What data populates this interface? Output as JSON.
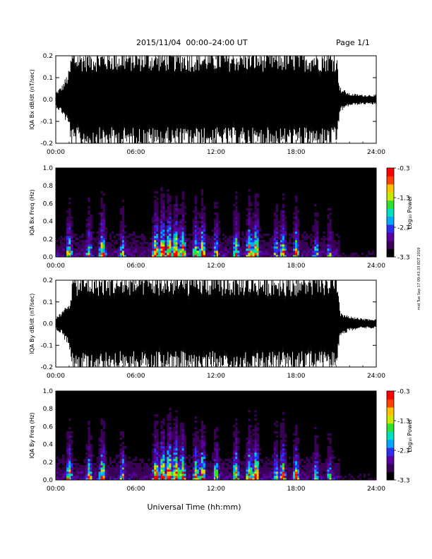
{
  "header": {
    "date_range": "2015/11/04  00:00–24:00 UT",
    "page": "Page 1/1"
  },
  "side_stamp": "mid Tue Sep 17 09:43:33 EDT 2019",
  "chart_data": [
    {
      "type": "line",
      "ylabel": "IQA Bx dB/dt (nT/sec)",
      "xticks": [
        "00:00",
        "06:00",
        "12:00",
        "18:00",
        "24:00"
      ],
      "xlim": [
        0,
        24
      ],
      "ylim": [
        -0.2,
        0.2
      ],
      "yticks": [
        "-0.2",
        "-0.1",
        "0.0",
        "0.1",
        "0.2"
      ],
      "series_color": "#000000",
      "envelope_hours": [
        0,
        0.5,
        1,
        1.2,
        2,
        3,
        4,
        5,
        6,
        7,
        7.5,
        8,
        9,
        9.5,
        10,
        11,
        12,
        13,
        14,
        15,
        16,
        17,
        18,
        19,
        20,
        21,
        21.3,
        22,
        23,
        24
      ],
      "envelope_amplitude": [
        0.03,
        0.06,
        0.12,
        0.2,
        0.2,
        0.2,
        0.2,
        0.2,
        0.2,
        0.2,
        0.2,
        0.2,
        0.2,
        0.2,
        0.2,
        0.2,
        0.2,
        0.2,
        0.2,
        0.2,
        0.2,
        0.2,
        0.2,
        0.2,
        0.2,
        0.2,
        0.05,
        0.025,
        0.02,
        0.02
      ]
    },
    {
      "type": "heatmap",
      "ylabel": "IQA Bx Freq (Hz)",
      "xticks": [
        "00:00",
        "06:00",
        "12:00",
        "18:00",
        "24:00"
      ],
      "xlim": [
        0,
        24
      ],
      "ylim": [
        0,
        1
      ],
      "yticks": [
        "0.0",
        "0.2",
        "0.4",
        "0.6",
        "0.8",
        "1.0"
      ],
      "colorbar_label": "Log₁₀ Power",
      "colorbar_ticks": [
        "-0.3",
        "-1.3",
        "-2.3",
        "-3.3"
      ],
      "colorbar_range": [
        -3.3,
        -0.3
      ],
      "colormap": [
        "#000000",
        "#3a0058",
        "#5a00a0",
        "#2e2ef0",
        "#00a8ff",
        "#00e0c0",
        "#30e030",
        "#c8e800",
        "#ffc000",
        "#ff4000",
        "#ff0000"
      ],
      "activity_hours": [
        1,
        2.5,
        3.5,
        5,
        7.5,
        8,
        8.5,
        9,
        9.5,
        10.5,
        11,
        12,
        13.5,
        14.5,
        15,
        16.5,
        17,
        18,
        19.5,
        20.5
      ],
      "activity_strength": [
        0.6,
        0.5,
        0.7,
        0.45,
        0.8,
        0.9,
        0.9,
        0.85,
        0.7,
        0.6,
        0.75,
        0.55,
        0.65,
        0.7,
        0.8,
        0.5,
        0.65,
        0.55,
        0.45,
        0.4
      ]
    },
    {
      "type": "line",
      "ylabel": "IQA By dB/dt (nT/sec)",
      "xticks": [
        "00:00",
        "06:00",
        "12:00",
        "18:00",
        "24:00"
      ],
      "xlim": [
        0,
        24
      ],
      "ylim": [
        -0.2,
        0.2
      ],
      "yticks": [
        "-0.2",
        "-0.1",
        "0.0",
        "0.1",
        "0.2"
      ],
      "series_color": "#000000",
      "envelope_hours": [
        0,
        0.5,
        1,
        1.3,
        2,
        3,
        4,
        5,
        6,
        7,
        7.5,
        8,
        9,
        9.5,
        10,
        11,
        12,
        13,
        14,
        15,
        16,
        17,
        18,
        19,
        20,
        21,
        21.3,
        22,
        23,
        24
      ],
      "envelope_amplitude": [
        0.025,
        0.05,
        0.1,
        0.2,
        0.2,
        0.2,
        0.2,
        0.2,
        0.2,
        0.2,
        0.2,
        0.2,
        0.2,
        0.2,
        0.2,
        0.2,
        0.2,
        0.2,
        0.2,
        0.2,
        0.2,
        0.2,
        0.2,
        0.2,
        0.2,
        0.2,
        0.05,
        0.03,
        0.02,
        0.02
      ]
    },
    {
      "type": "heatmap",
      "ylabel": "IQA By Freq (Hz)",
      "xticks": [
        "00:00",
        "06:00",
        "12:00",
        "18:00",
        "24:00"
      ],
      "xlim": [
        0,
        24
      ],
      "ylim": [
        0,
        1
      ],
      "yticks": [
        "0.0",
        "0.2",
        "0.4",
        "0.6",
        "0.8",
        "1.0"
      ],
      "colorbar_label": "Log₁₀ Power",
      "colorbar_ticks": [
        "-0.3",
        "-1.3",
        "-2.3",
        "-3.3"
      ],
      "colorbar_range": [
        -3.3,
        -0.3
      ],
      "colormap": [
        "#000000",
        "#3a0058",
        "#5a00a0",
        "#2e2ef0",
        "#00a8ff",
        "#00e0c0",
        "#30e030",
        "#c8e800",
        "#ffc000",
        "#ff4000",
        "#ff0000"
      ],
      "activity_hours": [
        1,
        2.5,
        3.5,
        5,
        7.5,
        8,
        8.5,
        9,
        9.5,
        10.5,
        11,
        12,
        13.5,
        14.5,
        15,
        16.5,
        17,
        18,
        19.5,
        20.5
      ],
      "activity_strength": [
        0.65,
        0.55,
        0.7,
        0.5,
        0.8,
        0.9,
        0.95,
        0.9,
        0.75,
        0.6,
        0.75,
        0.55,
        0.65,
        0.7,
        0.85,
        0.55,
        0.7,
        0.55,
        0.45,
        0.4
      ]
    }
  ],
  "xlabel": "Universal Time (hh:mm)"
}
